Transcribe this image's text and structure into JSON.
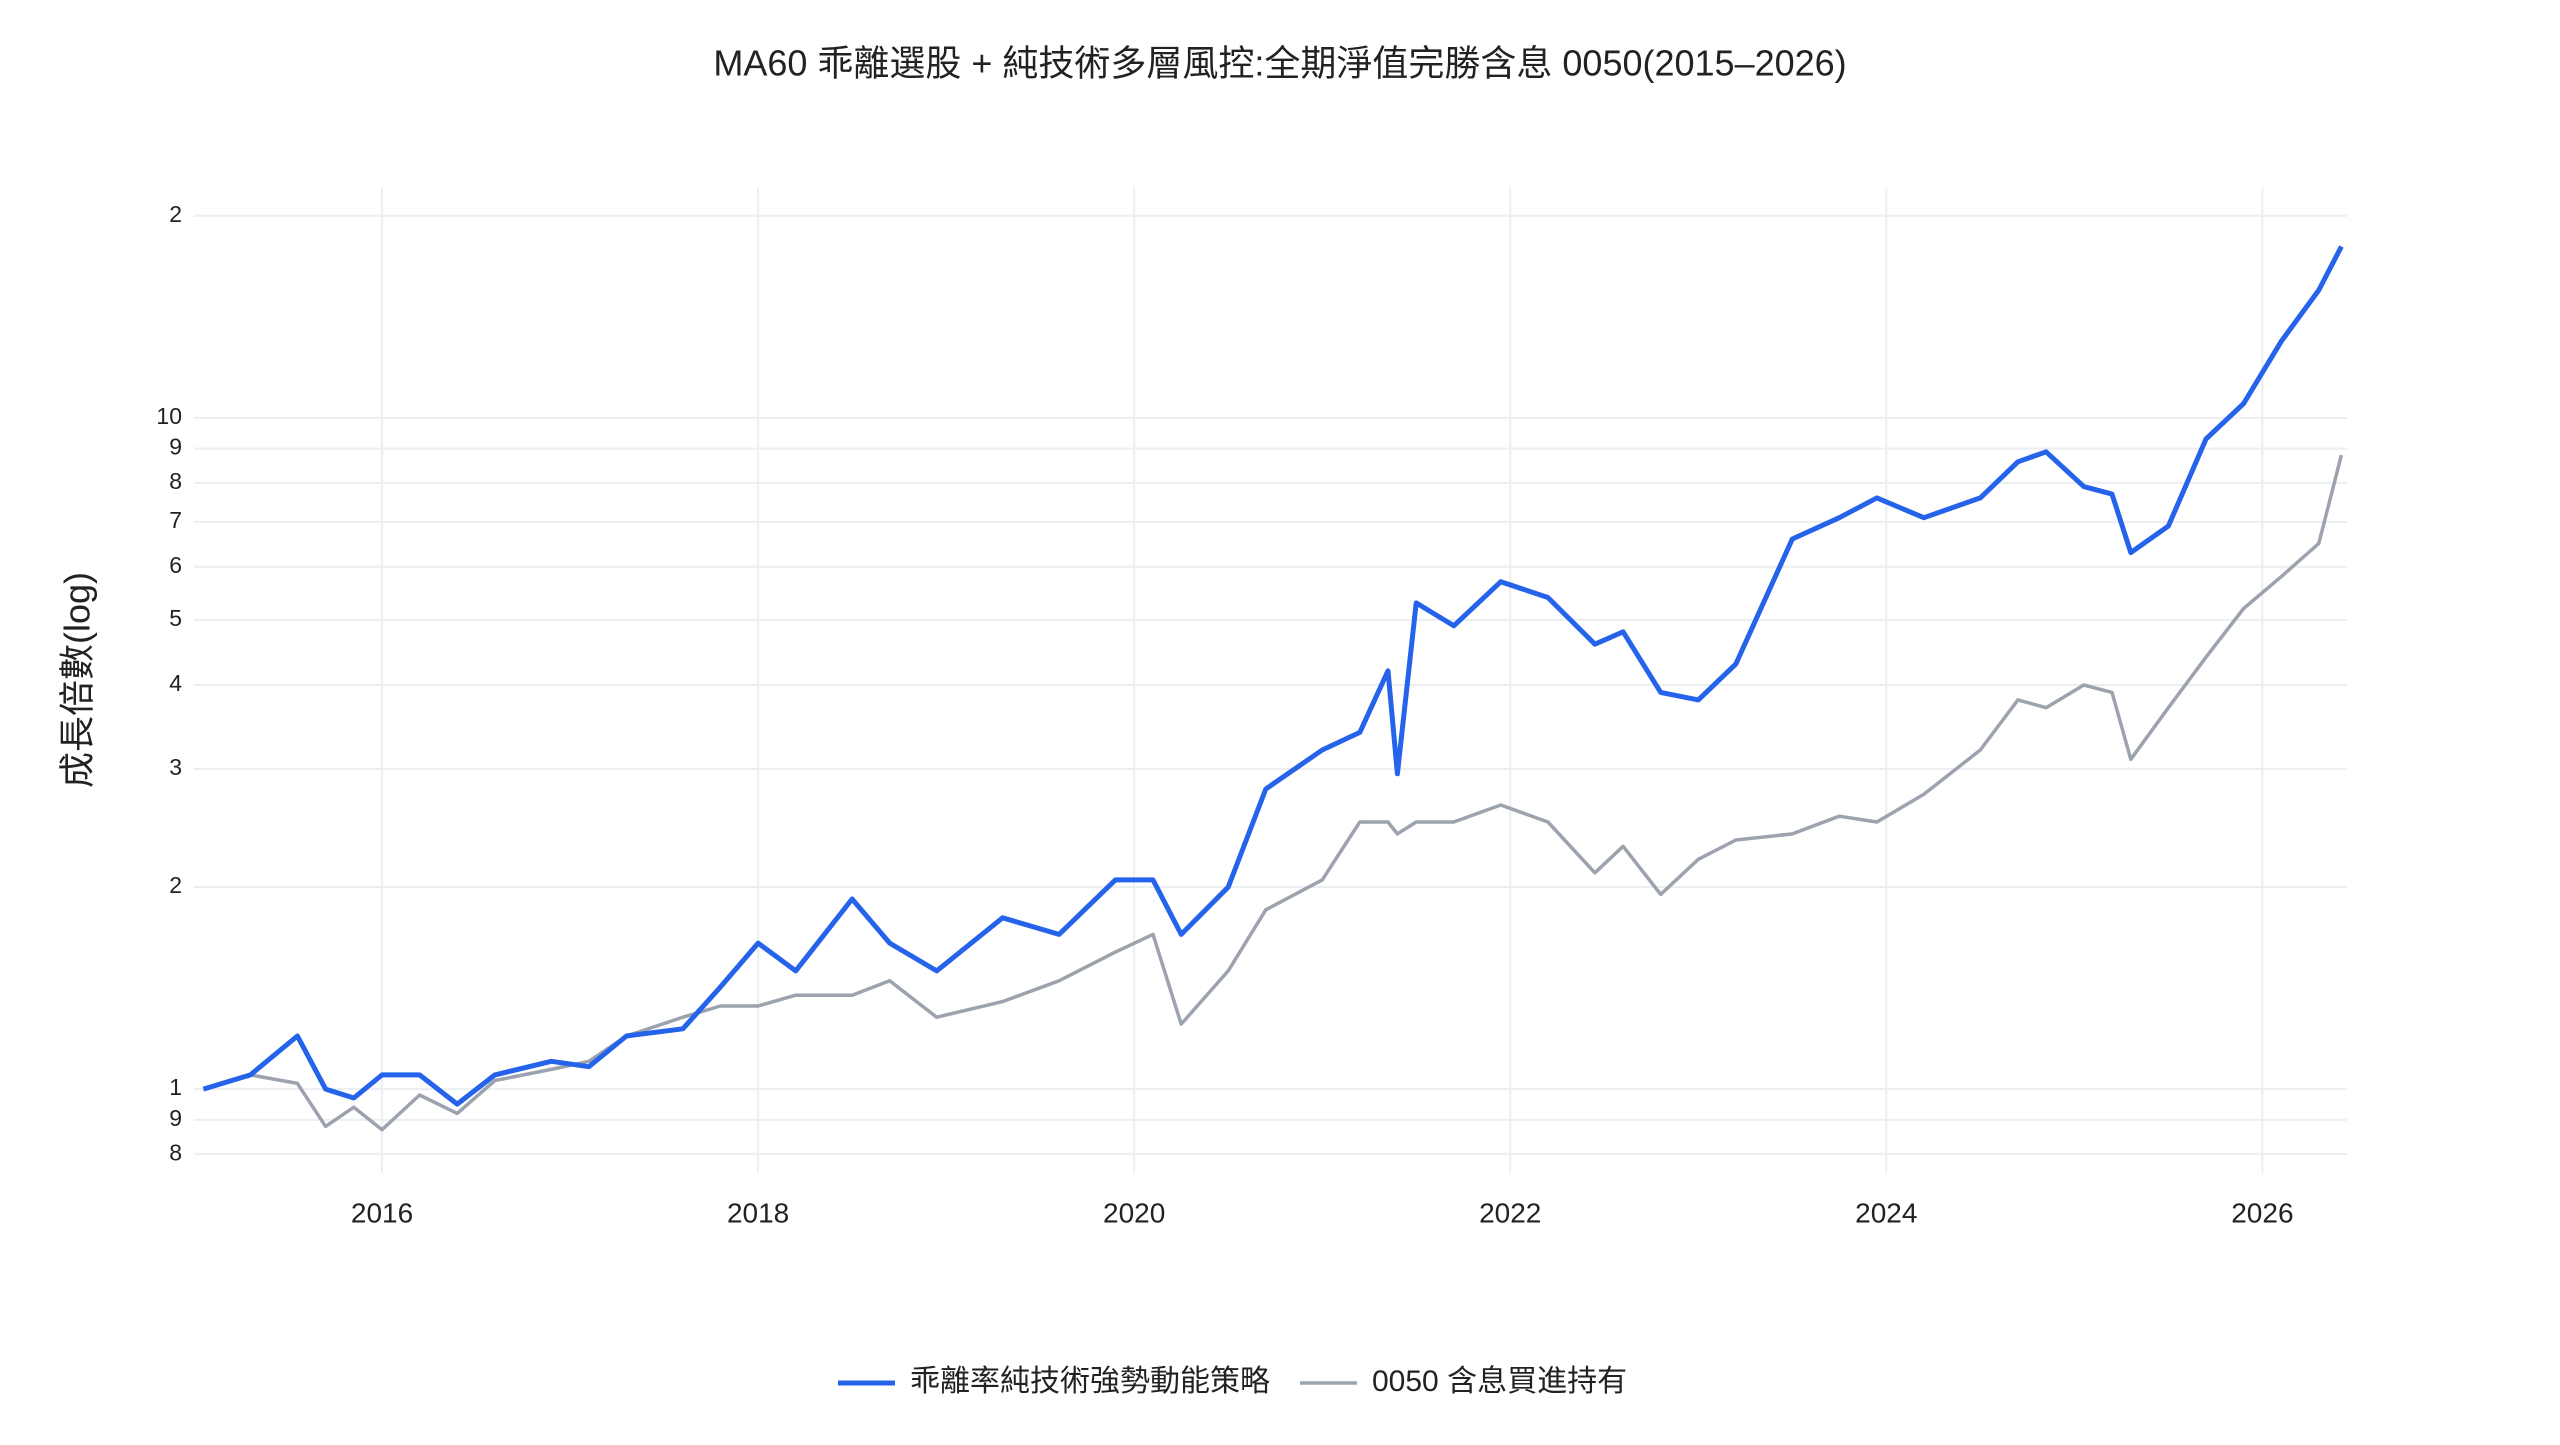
{
  "chart_data": {
    "type": "line",
    "title": "MA60 乖離選股 + 純技術多層風控:全期淨值完勝含息 0050(2015–2026)",
    "y_label": "成長倍數(log)",
    "log_y": true,
    "grid": true,
    "legend": "bottom",
    "x": [
      2015.05,
      2015.3,
      2015.55,
      2015.7,
      2015.85,
      2016.0,
      2016.2,
      2016.4,
      2016.6,
      2016.9,
      2017.1,
      2017.3,
      2017.6,
      2017.8,
      2018.0,
      2018.2,
      2018.5,
      2018.7,
      2018.95,
      2019.3,
      2019.6,
      2019.9,
      2020.1,
      2020.25,
      2020.5,
      2020.7,
      2021.0,
      2021.2,
      2021.35,
      2021.4,
      2021.5,
      2021.7,
      2021.95,
      2022.2,
      2022.45,
      2022.6,
      2022.8,
      2023.0,
      2023.2,
      2023.5,
      2023.75,
      2023.95,
      2024.2,
      2024.5,
      2024.7,
      2024.85,
      2025.05,
      2025.2,
      2025.3,
      2025.5,
      2025.7,
      2025.9,
      2026.1,
      2026.3,
      2026.42
    ],
    "xlim": [
      2015.0,
      2026.45
    ],
    "xticks": [
      2016,
      2018,
      2020,
      2022,
      2024,
      2026
    ],
    "ylim": [
      0.75,
      22
    ],
    "yticks": [
      {
        "value": 0.8,
        "label": "8"
      },
      {
        "value": 0.9,
        "label": "9"
      },
      1,
      2,
      3,
      4,
      5,
      6,
      7,
      8,
      9,
      10,
      {
        "value": 20,
        "label": "2"
      }
    ],
    "series": [
      {
        "name": "乖離率純技術強勢動能策略",
        "color": "#2563eb",
        "values": [
          1.0,
          1.05,
          1.2,
          1.0,
          0.97,
          1.05,
          1.05,
          0.95,
          1.05,
          1.1,
          1.08,
          1.2,
          1.23,
          1.42,
          1.65,
          1.5,
          1.92,
          1.65,
          1.5,
          1.8,
          1.7,
          2.05,
          2.05,
          1.7,
          2.0,
          2.8,
          3.2,
          3.4,
          4.2,
          2.95,
          5.3,
          4.9,
          5.7,
          5.4,
          4.6,
          4.8,
          3.9,
          3.8,
          4.3,
          6.6,
          7.1,
          7.6,
          7.1,
          7.6,
          8.6,
          8.9,
          7.9,
          7.7,
          6.3,
          6.9,
          9.3,
          10.5,
          13,
          15.5,
          18
        ]
      },
      {
        "name": "0050 含息買進持有",
        "color": "#9ca3af",
        "values": [
          1.0,
          1.05,
          1.02,
          0.88,
          0.94,
          0.87,
          0.98,
          0.92,
          1.03,
          1.07,
          1.1,
          1.2,
          1.28,
          1.33,
          1.33,
          1.38,
          1.38,
          1.45,
          1.28,
          1.35,
          1.45,
          1.6,
          1.7,
          1.25,
          1.5,
          1.85,
          2.05,
          2.5,
          2.5,
          2.4,
          2.5,
          2.5,
          2.65,
          2.5,
          2.1,
          2.3,
          1.95,
          2.2,
          2.35,
          2.4,
          2.55,
          2.5,
          2.75,
          3.2,
          3.8,
          3.7,
          4.0,
          3.9,
          3.1,
          3.7,
          4.4,
          5.2,
          5.8,
          6.5,
          8.8
        ]
      }
    ]
  }
}
